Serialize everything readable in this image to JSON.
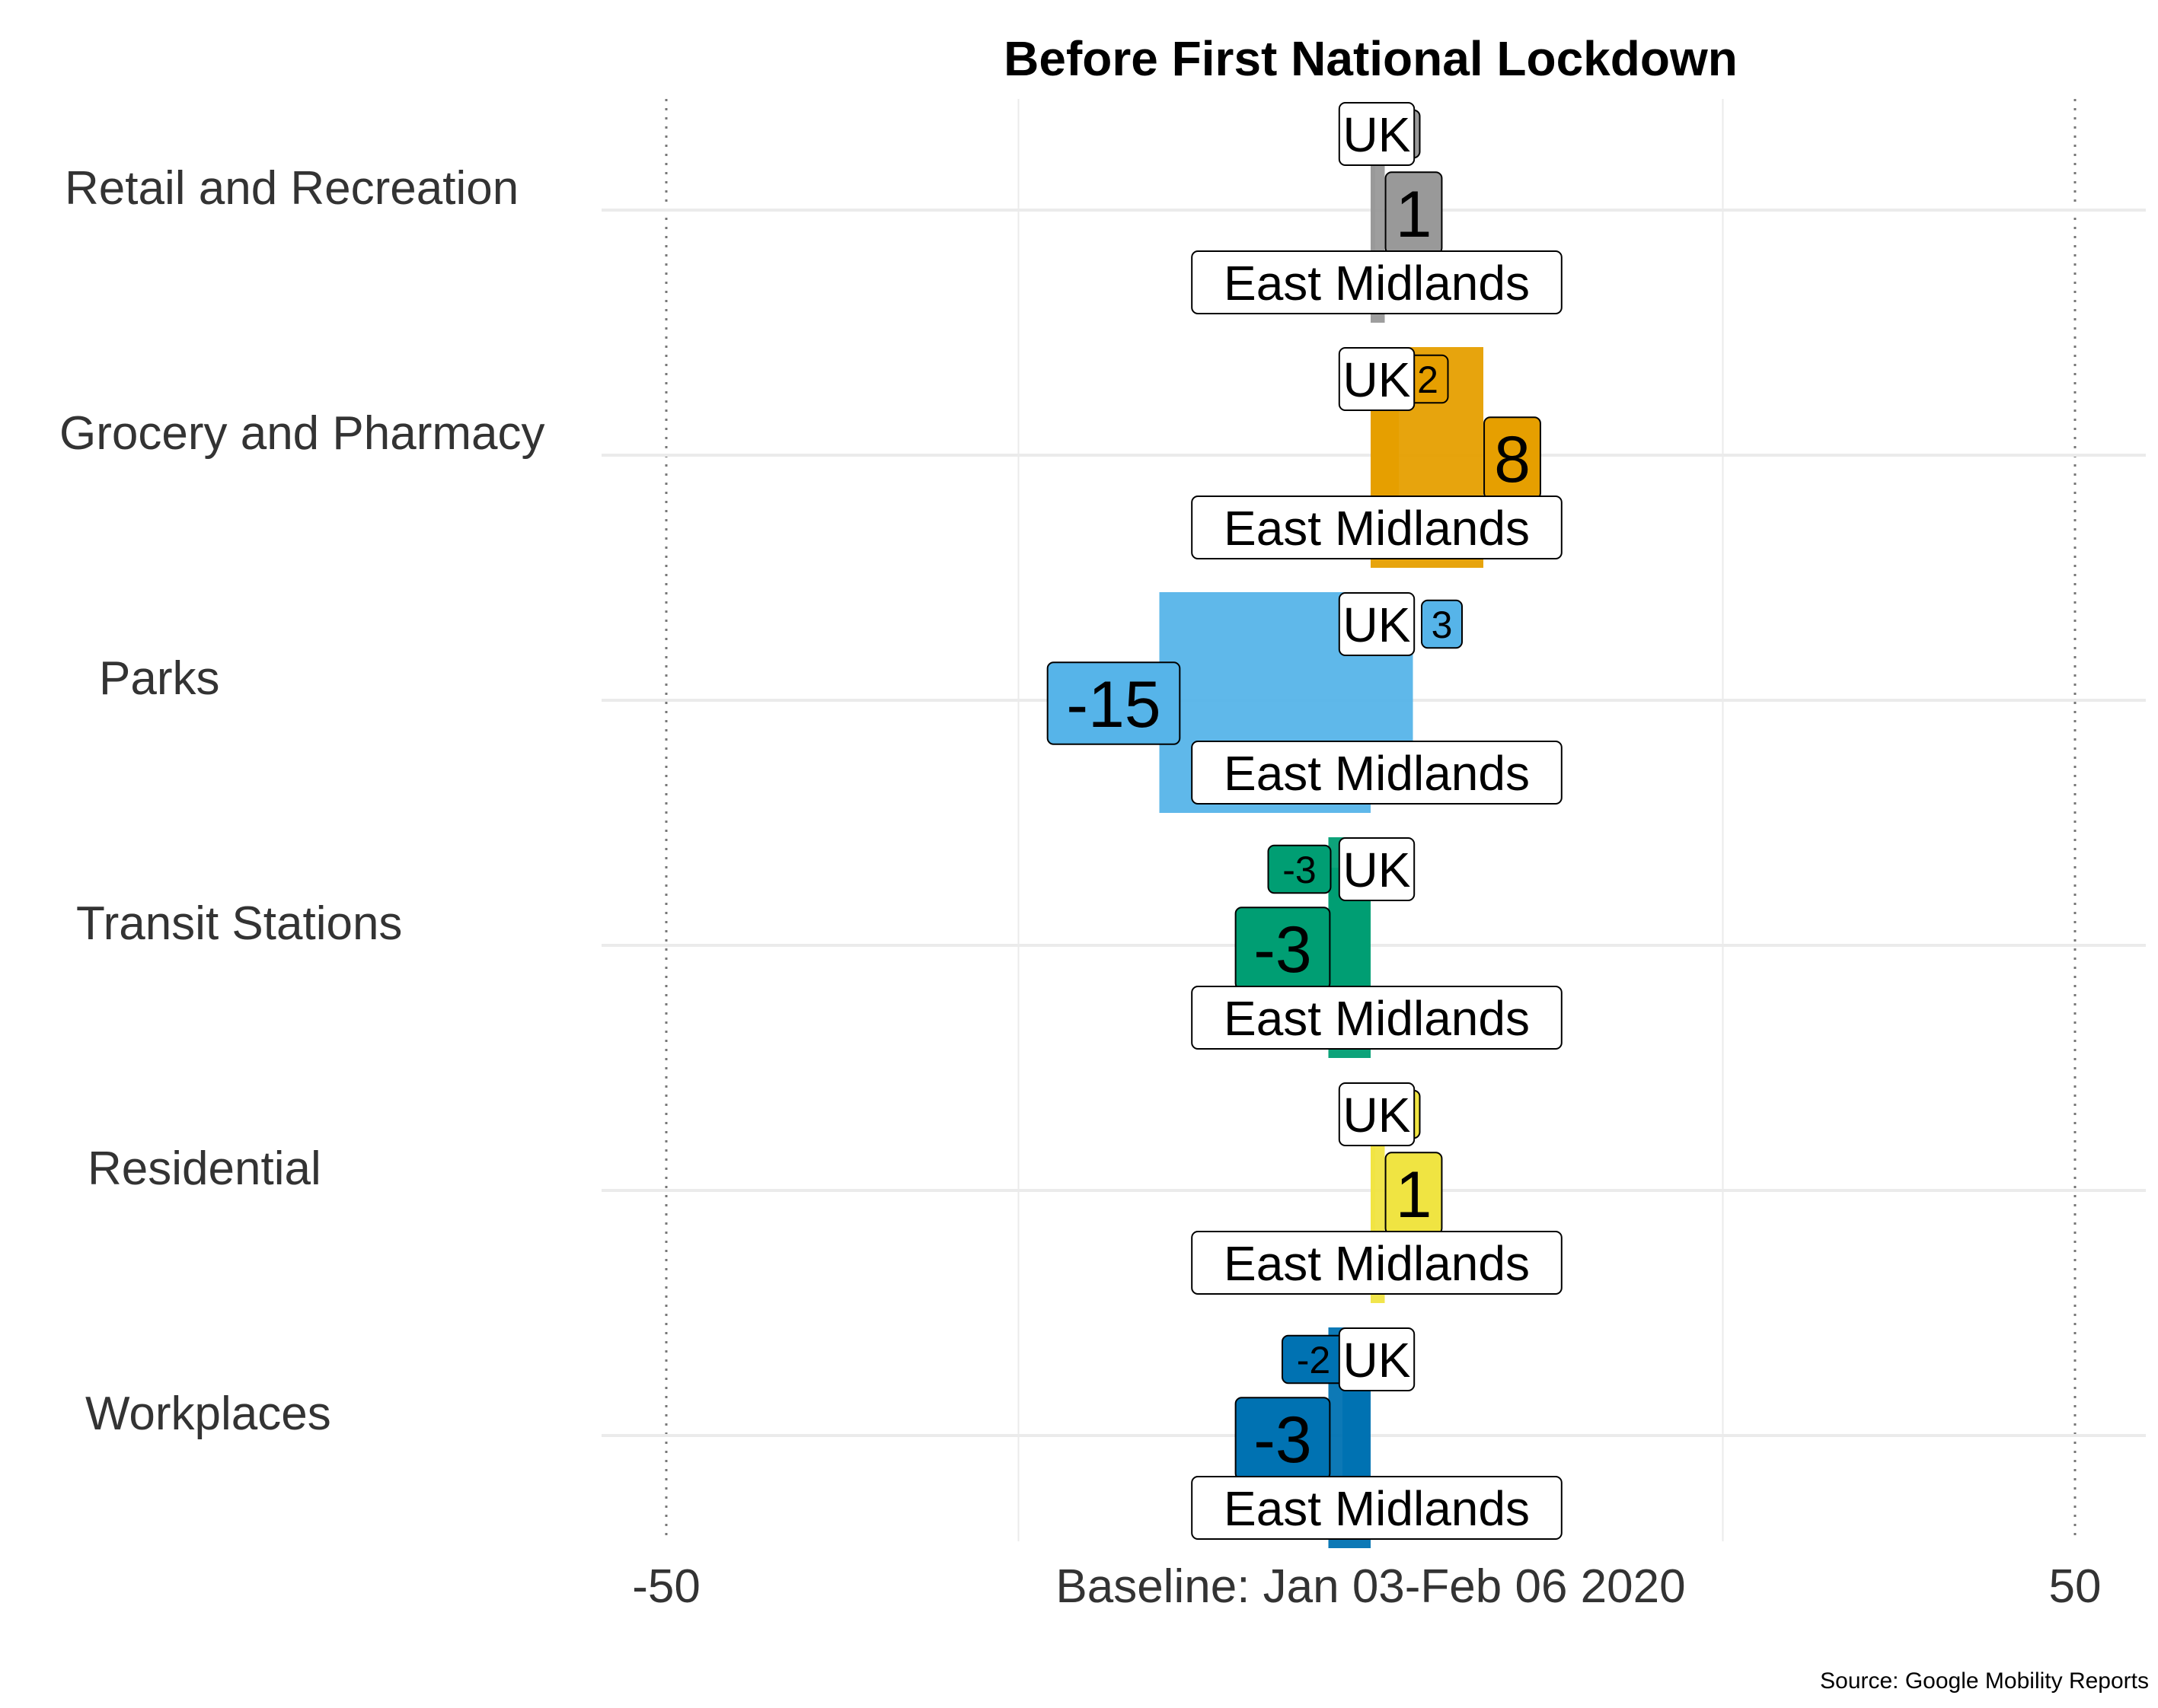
{
  "chart_data": {
    "type": "bar",
    "title": "Before First National Lockdown",
    "xlabel": "Baseline: Jan 03-Feb 06 2020",
    "source": "Source: Google Mobility Reports",
    "xlim": [
      -50,
      50
    ],
    "x_tick_labels": [
      "-50",
      "50"
    ],
    "grid": true,
    "categories": [
      "Retail and Recreation",
      "Grocery and Pharmacy",
      "Parks",
      "Transit Stations",
      "Residential",
      "Workplaces"
    ],
    "colors": [
      "#999999",
      "#E69F00",
      "#56B4E9",
      "#009E73",
      "#F0E442",
      "#0072B2"
    ],
    "series": [
      {
        "name": "UK",
        "values": [
          0,
          2,
          3,
          -3,
          0,
          -2
        ],
        "value_labels": [
          "0",
          "2",
          "3",
          "-3",
          "0",
          "-2"
        ]
      },
      {
        "name": "East Midlands",
        "values": [
          1,
          8,
          -15,
          -3,
          1,
          -3
        ],
        "value_labels": [
          "1",
          "8",
          "-15",
          "-3",
          "1",
          "-3"
        ]
      }
    ]
  }
}
